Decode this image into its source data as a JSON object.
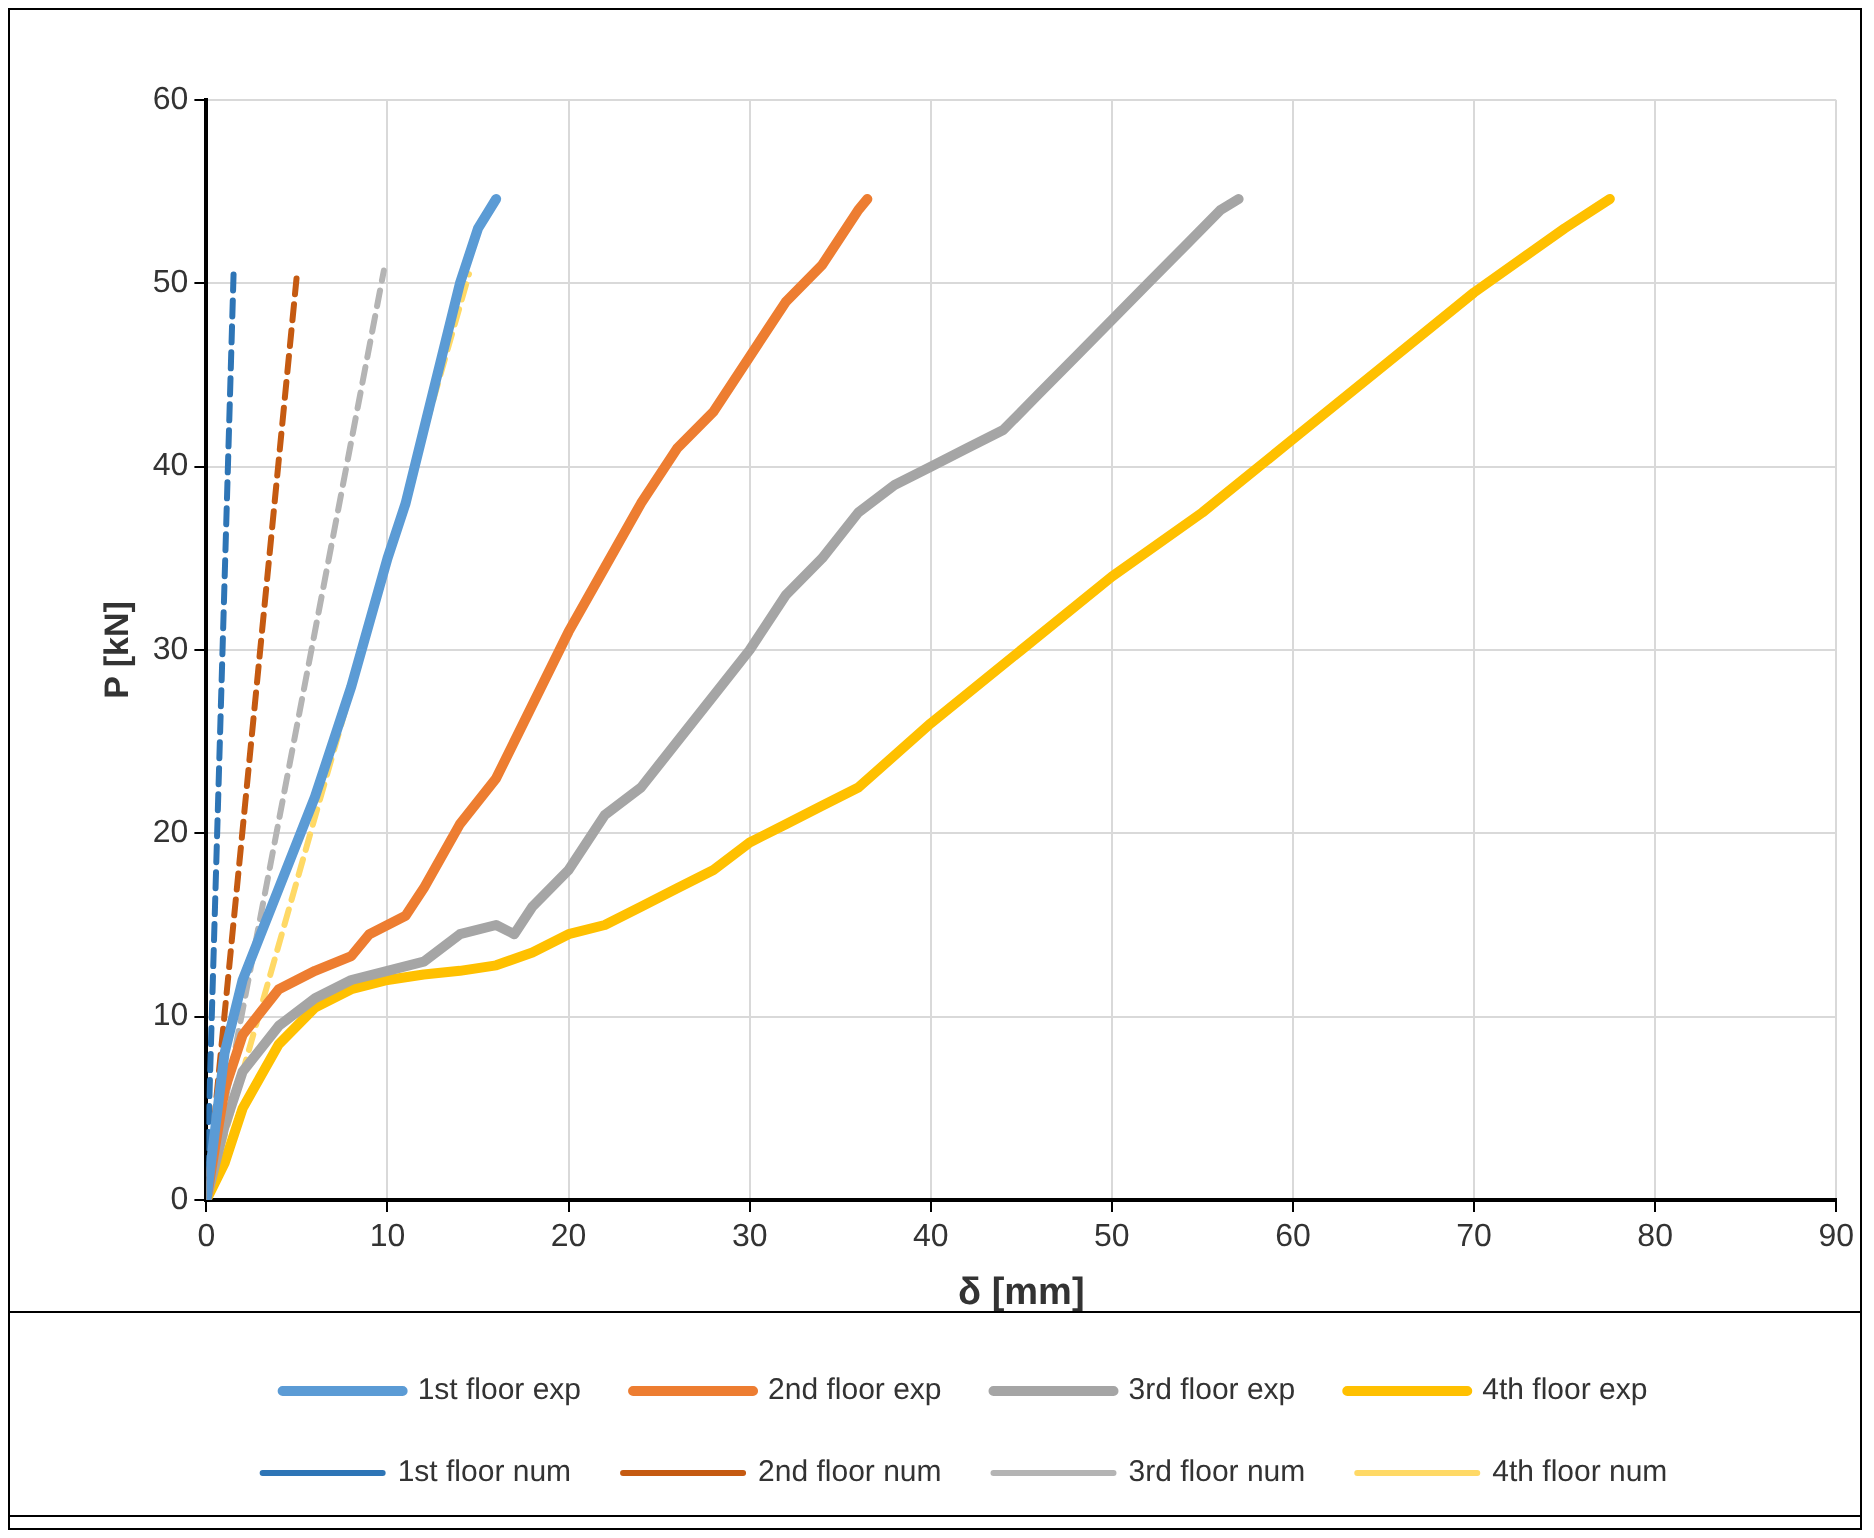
{
  "chart_data": {
    "type": "line",
    "xlabel": "δ [mm]",
    "ylabel": "P [kN]",
    "xlim": [
      0,
      90
    ],
    "xticks": [
      0,
      10,
      20,
      30,
      40,
      50,
      60,
      70,
      80,
      90
    ],
    "ylim": [
      0,
      60
    ],
    "yticks": [
      0,
      10,
      20,
      30,
      40,
      50,
      60
    ],
    "grid": true,
    "legend": "bottom",
    "marker": "none",
    "series": [
      {
        "name": "1st floor exp",
        "color": "#5b9bd5",
        "line_style": "solid",
        "x": [
          0,
          1,
          2,
          4,
          6,
          8,
          10,
          11,
          12,
          13,
          14,
          15,
          16
        ],
        "values": [
          0,
          8,
          12,
          17,
          22,
          28,
          35,
          38,
          42,
          46,
          50,
          53,
          54.6
        ]
      },
      {
        "name": "2nd floor exp",
        "color": "#ed7d31",
        "line_style": "solid",
        "x": [
          0,
          1,
          2,
          4,
          6,
          8,
          9,
          10,
          11,
          12,
          14,
          16,
          18,
          20,
          22,
          24,
          26,
          28,
          30,
          32,
          34,
          36,
          36.5
        ],
        "values": [
          0,
          6,
          9,
          11.5,
          12.5,
          13.3,
          14.5,
          15,
          15.5,
          17,
          20.5,
          23,
          27,
          31,
          34.5,
          38,
          41,
          43,
          46,
          49,
          51,
          54,
          54.6
        ]
      },
      {
        "name": "3rd floor exp",
        "color": "#a5a5a5",
        "line_style": "solid",
        "x": [
          0,
          1,
          2,
          4,
          6,
          8,
          10,
          12,
          14,
          16,
          17,
          18,
          20,
          22,
          24,
          26,
          28,
          30,
          32,
          34,
          36,
          38,
          40,
          42,
          44,
          46,
          48,
          50,
          52,
          54,
          56,
          57
        ],
        "values": [
          0,
          4,
          7,
          9.5,
          11,
          12,
          12.5,
          13,
          14.5,
          15,
          14.5,
          16,
          18,
          21,
          22.5,
          25,
          27.5,
          30,
          33,
          35,
          37.5,
          39,
          40,
          41,
          42,
          44,
          46,
          48,
          50,
          52,
          54,
          54.6
        ]
      },
      {
        "name": "4th floor exp",
        "color": "#ffc000",
        "line_style": "solid",
        "x": [
          0,
          1,
          2,
          4,
          6,
          8,
          10,
          12,
          14,
          16,
          18,
          20,
          22,
          24,
          26,
          28,
          30,
          32,
          34,
          36,
          40,
          45,
          50,
          55,
          60,
          65,
          70,
          75,
          77.5
        ],
        "values": [
          0,
          2,
          5,
          8.5,
          10.5,
          11.5,
          12,
          12.3,
          12.5,
          12.8,
          13.5,
          14.5,
          15,
          16,
          17,
          18,
          19.5,
          20.5,
          21.5,
          22.5,
          26,
          30,
          34,
          37.5,
          41.5,
          45.5,
          49.5,
          53,
          54.6
        ]
      },
      {
        "name": "1st floor num",
        "color": "#2e75b6",
        "line_style": "dashed",
        "x": [
          0,
          1.5
        ],
        "values": [
          0,
          50.5
        ]
      },
      {
        "name": "2nd floor num",
        "color": "#c55a11",
        "line_style": "dashed",
        "x": [
          0,
          5
        ],
        "values": [
          0,
          50.5
        ]
      },
      {
        "name": "3rd floor num",
        "color": "#b4b4b4",
        "line_style": "dashed",
        "x": [
          0,
          9.8
        ],
        "values": [
          0,
          50.7
        ]
      },
      {
        "name": "4th floor num",
        "color": "#ffd966",
        "line_style": "dashed",
        "x": [
          0,
          14.5
        ],
        "values": [
          0,
          50.5
        ]
      }
    ]
  }
}
